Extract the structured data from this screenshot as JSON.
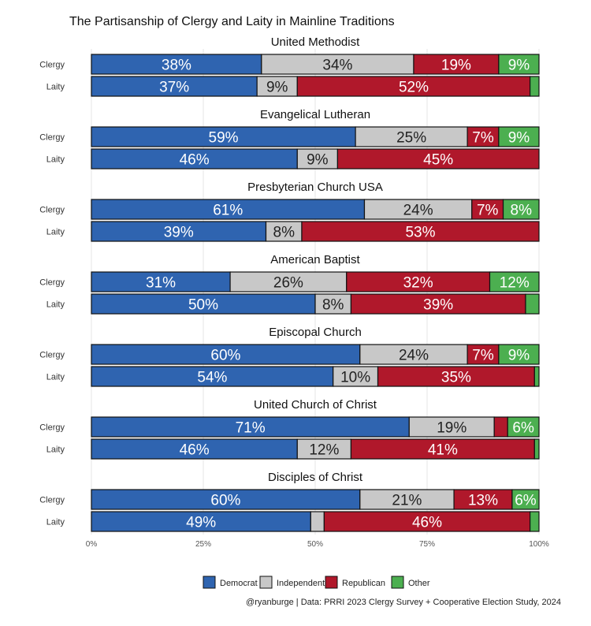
{
  "chart_data": {
    "type": "bar",
    "orientation": "horizontal",
    "stacked": true,
    "title": "The Partisanship of Clergy and Laity in Mainline Traditions",
    "caption": "@ryanburge | Data: PRRI 2023 Clergy Survey + Cooperative Election Study, 2024",
    "xlim": [
      0,
      100
    ],
    "x_ticks": [
      "0%",
      "25%",
      "50%",
      "75%",
      "100%"
    ],
    "x_tick_values": [
      0,
      25,
      50,
      75,
      100
    ],
    "legend_position": "bottom",
    "series": [
      {
        "name": "Democrat",
        "color": "#2f64b0",
        "text_color": "#ffffff"
      },
      {
        "name": "Independent",
        "color": "#c8c8c8",
        "text_color": "#222222"
      },
      {
        "name": "Republican",
        "color": "#b0182b",
        "text_color": "#ffffff"
      },
      {
        "name": "Other",
        "color": "#4caf50",
        "text_color": "#ffffff"
      }
    ],
    "panels": [
      {
        "title": "United Methodist",
        "rows": [
          {
            "label": "Clergy",
            "values": [
              38,
              34,
              19,
              9
            ],
            "labels": [
              "38%",
              "34%",
              "19%",
              "9%"
            ]
          },
          {
            "label": "Laity",
            "values": [
              37,
              9,
              52,
              2
            ],
            "labels": [
              "37%",
              "9%",
              "52%",
              ""
            ]
          }
        ]
      },
      {
        "title": "Evangelical Lutheran",
        "rows": [
          {
            "label": "Clergy",
            "values": [
              59,
              25,
              7,
              9
            ],
            "labels": [
              "59%",
              "25%",
              "7%",
              "9%"
            ]
          },
          {
            "label": "Laity",
            "values": [
              46,
              9,
              45,
              0.5
            ],
            "labels": [
              "46%",
              "9%",
              "45%",
              ""
            ]
          }
        ]
      },
      {
        "title": "Presbyterian Church USA",
        "rows": [
          {
            "label": "Clergy",
            "values": [
              61,
              24,
              7,
              8
            ],
            "labels": [
              "61%",
              "24%",
              "7%",
              "8%"
            ]
          },
          {
            "label": "Laity",
            "values": [
              39,
              8,
              53,
              0.5
            ],
            "labels": [
              "39%",
              "8%",
              "53%",
              ""
            ]
          }
        ]
      },
      {
        "title": "American Baptist",
        "rows": [
          {
            "label": "Clergy",
            "values": [
              31,
              26,
              32,
              12
            ],
            "labels": [
              "31%",
              "26%",
              "32%",
              "12%"
            ]
          },
          {
            "label": "Laity",
            "values": [
              50,
              8,
              39,
              3
            ],
            "labels": [
              "50%",
              "8%",
              "39%",
              ""
            ]
          }
        ]
      },
      {
        "title": "Episcopal Church",
        "rows": [
          {
            "label": "Clergy",
            "values": [
              60,
              24,
              7,
              9
            ],
            "labels": [
              "60%",
              "24%",
              "7%",
              "9%"
            ]
          },
          {
            "label": "Laity",
            "values": [
              54,
              10,
              35,
              1
            ],
            "labels": [
              "54%",
              "10%",
              "35%",
              ""
            ]
          }
        ]
      },
      {
        "title": "United Church of Christ",
        "rows": [
          {
            "label": "Clergy",
            "values": [
              71,
              19,
              3,
              6
            ],
            "labels": [
              "71%",
              "19%",
              "",
              "6%"
            ]
          },
          {
            "label": "Laity",
            "values": [
              46,
              12,
              41,
              0.5
            ],
            "labels": [
              "46%",
              "12%",
              "41%",
              ""
            ]
          }
        ]
      },
      {
        "title": "Disciples of Christ",
        "rows": [
          {
            "label": "Clergy",
            "values": [
              60,
              21,
              13,
              6
            ],
            "labels": [
              "60%",
              "21%",
              "13%",
              "6%"
            ]
          },
          {
            "label": "Laity",
            "values": [
              49,
              3,
              46,
              2
            ],
            "labels": [
              "49%",
              "",
              "46%",
              ""
            ]
          }
        ]
      }
    ]
  }
}
